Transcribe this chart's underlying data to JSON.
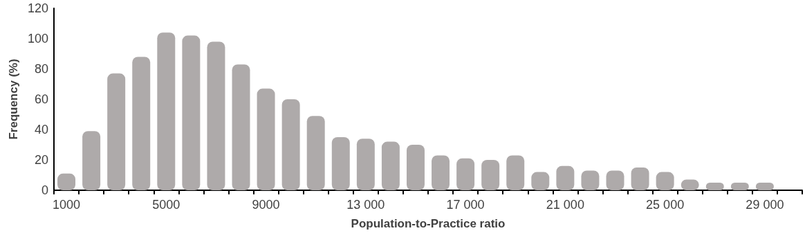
{
  "chart_data": {
    "type": "bar",
    "xlabel": "Population-to-Practice ratio",
    "ylabel": "Frequency (%)",
    "categories": [
      "1000",
      null,
      null,
      null,
      "5000",
      null,
      null,
      null,
      "9000",
      null,
      null,
      null,
      "13 000",
      null,
      null,
      null,
      "17 000",
      null,
      null,
      null,
      "21 000",
      null,
      null,
      null,
      "25 000",
      null,
      null,
      null,
      "29 000",
      null
    ],
    "values": [
      11,
      39,
      77,
      88,
      104,
      102,
      98,
      83,
      67,
      60,
      49,
      35,
      34,
      32,
      30,
      23,
      21,
      20,
      23,
      12,
      16,
      13,
      13,
      15,
      12,
      7,
      5,
      5,
      5,
      null
    ],
    "color": "#aeaaaa",
    "ylim": [
      0,
      120
    ],
    "yticks": [
      0,
      20,
      40,
      60,
      80,
      100,
      120
    ],
    "grid": false
  }
}
